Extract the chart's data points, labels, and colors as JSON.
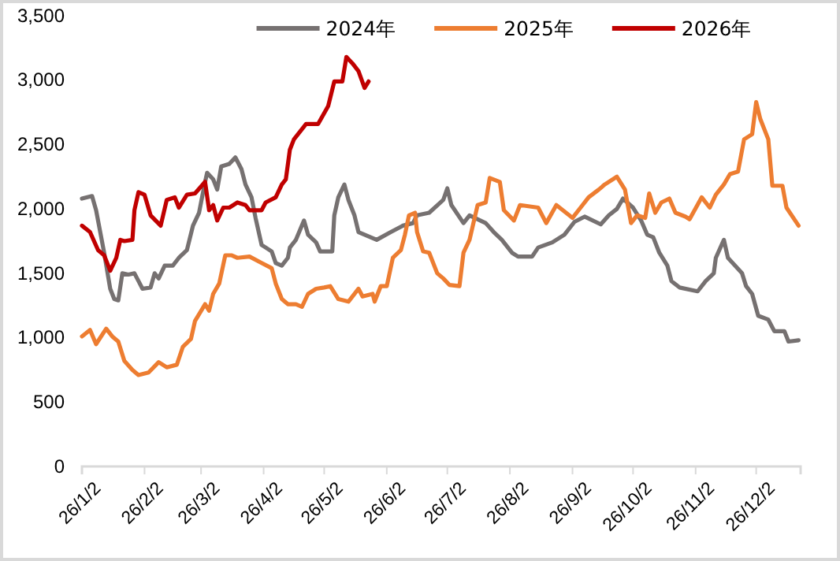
{
  "chart_data": {
    "type": "line",
    "legend": "top",
    "line_style": "solid",
    "marker": "none",
    "xlim": [
      "2026-01-02",
      "2026-12-24"
    ],
    "xticks": [
      {
        "value": "2026-01-02",
        "label": "26/1/2"
      },
      {
        "value": "2026-02-02",
        "label": "26/2/2"
      },
      {
        "value": "2026-03-02",
        "label": "26/3/2"
      },
      {
        "value": "2026-04-02",
        "label": "26/4/2"
      },
      {
        "value": "2026-05-02",
        "label": "26/5/2"
      },
      {
        "value": "2026-06-02",
        "label": "26/6/2"
      },
      {
        "value": "2026-07-02",
        "label": "26/7/2"
      },
      {
        "value": "2026-08-02",
        "label": "26/8/2"
      },
      {
        "value": "2026-09-02",
        "label": "26/9/2"
      },
      {
        "value": "2026-10-02",
        "label": "26/10/2"
      },
      {
        "value": "2026-11-02",
        "label": "26/11/2"
      },
      {
        "value": "2026-12-02",
        "label": "26/12/2"
      }
    ],
    "ylim": [
      0,
      3500
    ],
    "yticks": [
      {
        "value": 0,
        "label": "0"
      },
      {
        "value": 500,
        "label": "500"
      },
      {
        "value": 1000,
        "label": "1,000"
      },
      {
        "value": 1500,
        "label": "1,500"
      },
      {
        "value": 2000,
        "label": "2,000"
      },
      {
        "value": 2500,
        "label": "2,500"
      },
      {
        "value": 3000,
        "label": "3,000"
      },
      {
        "value": 3500,
        "label": "3,500"
      }
    ],
    "series": [
      {
        "name": "2024年",
        "color": "#767171",
        "x": [
          "2026-01-02",
          "2026-01-07",
          "2026-01-09",
          "2026-01-13",
          "2026-01-16",
          "2026-01-18",
          "2026-01-20",
          "2026-01-22",
          "2026-01-25",
          "2026-01-28",
          "2026-01-30",
          "2026-02-01",
          "2026-02-05",
          "2026-02-07",
          "2026-02-09",
          "2026-02-12",
          "2026-02-16",
          "2026-02-19",
          "2026-02-23",
          "2026-02-26",
          "2026-03-01",
          "2026-03-04",
          "2026-03-05",
          "2026-03-08",
          "2026-03-10",
          "2026-03-12",
          "2026-03-16",
          "2026-03-19",
          "2026-03-22",
          "2026-03-24",
          "2026-03-27",
          "2026-03-29",
          "2026-04-01",
          "2026-04-03",
          "2026-04-06",
          "2026-04-08",
          "2026-04-11",
          "2026-04-14",
          "2026-04-15",
          "2026-04-18",
          "2026-04-22",
          "2026-04-24",
          "2026-04-28",
          "2026-04-30",
          "2026-05-06",
          "2026-05-07",
          "2026-05-09",
          "2026-05-12",
          "2026-05-14",
          "2026-05-17",
          "2026-05-19",
          "2026-05-22",
          "2026-05-28",
          "2026-06-04",
          "2026-06-10",
          "2026-06-15",
          "2026-06-17",
          "2026-06-23",
          "2026-06-30",
          "2026-07-02",
          "2026-07-04",
          "2026-07-10",
          "2026-07-13",
          "2026-07-21",
          "2026-07-25",
          "2026-07-29",
          "2026-08-03",
          "2026-08-06",
          "2026-08-13",
          "2026-08-16",
          "2026-08-23",
          "2026-08-29",
          "2026-09-03",
          "2026-09-08",
          "2026-09-16",
          "2026-09-20",
          "2026-09-24",
          "2026-09-27",
          "2026-10-02",
          "2026-10-06",
          "2026-10-09",
          "2026-10-12",
          "2026-10-15",
          "2026-10-19",
          "2026-10-21",
          "2026-10-25",
          "2026-11-03",
          "2026-11-07",
          "2026-11-11",
          "2026-11-12",
          "2026-11-16",
          "2026-11-18",
          "2026-11-25",
          "2026-11-27",
          "2026-11-30",
          "2026-12-03",
          "2026-12-08",
          "2026-12-11",
          "2026-12-16",
          "2026-12-18",
          "2026-12-23"
        ],
        "values": [
          2080,
          2100,
          1990,
          1660,
          1380,
          1300,
          1290,
          1500,
          1490,
          1500,
          1440,
          1380,
          1390,
          1500,
          1460,
          1560,
          1560,
          1620,
          1680,
          1870,
          1970,
          2210,
          2280,
          2230,
          2150,
          2330,
          2350,
          2400,
          2310,
          2190,
          2090,
          1930,
          1720,
          1700,
          1670,
          1580,
          1560,
          1620,
          1700,
          1760,
          1910,
          1800,
          1740,
          1670,
          1670,
          1950,
          2090,
          2190,
          2070,
          1950,
          1820,
          1800,
          1760,
          1820,
          1870,
          1890,
          1950,
          1970,
          2070,
          2160,
          2030,
          1890,
          1950,
          1890,
          1820,
          1760,
          1660,
          1630,
          1630,
          1700,
          1740,
          1800,
          1900,
          1940,
          1880,
          1950,
          2000,
          2080,
          2010,
          1910,
          1800,
          1780,
          1660,
          1560,
          1440,
          1390,
          1360,
          1440,
          1500,
          1620,
          1760,
          1620,
          1500,
          1400,
          1340,
          1170,
          1140,
          1050,
          1050,
          970,
          980
        ]
      },
      {
        "name": "2025年",
        "color": "#ed7d31",
        "x": [
          "2026-01-02",
          "2026-01-06",
          "2026-01-09",
          "2026-01-14",
          "2026-01-17",
          "2026-01-20",
          "2026-01-23",
          "2026-01-27",
          "2026-01-30",
          "2026-02-04",
          "2026-02-09",
          "2026-02-13",
          "2026-02-18",
          "2026-02-21",
          "2026-02-25",
          "2026-02-27",
          "2026-03-04",
          "2026-03-06",
          "2026-03-08",
          "2026-03-11",
          "2026-03-14",
          "2026-03-17",
          "2026-03-20",
          "2026-03-26",
          "2026-04-01",
          "2026-04-06",
          "2026-04-08",
          "2026-04-11",
          "2026-04-14",
          "2026-04-18",
          "2026-04-21",
          "2026-04-24",
          "2026-04-28",
          "2026-05-02",
          "2026-05-05",
          "2026-05-09",
          "2026-05-14",
          "2026-05-19",
          "2026-05-21",
          "2026-05-26",
          "2026-05-27",
          "2026-05-30",
          "2026-06-02",
          "2026-06-05",
          "2026-06-09",
          "2026-06-11",
          "2026-06-13",
          "2026-06-16",
          "2026-06-17",
          "2026-06-20",
          "2026-06-23",
          "2026-06-27",
          "2026-06-30",
          "2026-07-03",
          "2026-07-08",
          "2026-07-10",
          "2026-07-13",
          "2026-07-17",
          "2026-07-21",
          "2026-07-23",
          "2026-07-28",
          "2026-07-30",
          "2026-08-04",
          "2026-08-07",
          "2026-08-16",
          "2026-08-20",
          "2026-08-25",
          "2026-09-02",
          "2026-09-06",
          "2026-09-10",
          "2026-09-15",
          "2026-09-18",
          "2026-09-24",
          "2026-09-28",
          "2026-10-01",
          "2026-10-04",
          "2026-10-08",
          "2026-10-10",
          "2026-10-13",
          "2026-10-16",
          "2026-10-20",
          "2026-10-23",
          "2026-10-28",
          "2026-10-30",
          "2026-11-05",
          "2026-11-09",
          "2026-11-12",
          "2026-11-16",
          "2026-11-19",
          "2026-11-23",
          "2026-11-26",
          "2026-11-30",
          "2026-12-02",
          "2026-12-04",
          "2026-12-08",
          "2026-12-10",
          "2026-12-15",
          "2026-12-17",
          "2026-12-23"
        ],
        "values": [
          1010,
          1060,
          950,
          1070,
          1010,
          970,
          820,
          750,
          710,
          730,
          810,
          770,
          790,
          930,
          990,
          1130,
          1260,
          1210,
          1340,
          1420,
          1640,
          1640,
          1620,
          1630,
          1580,
          1540,
          1420,
          1300,
          1260,
          1260,
          1240,
          1340,
          1380,
          1390,
          1400,
          1300,
          1280,
          1380,
          1320,
          1340,
          1280,
          1400,
          1400,
          1620,
          1680,
          1800,
          1950,
          1970,
          1820,
          1670,
          1660,
          1500,
          1460,
          1410,
          1400,
          1660,
          1760,
          2030,
          2050,
          2240,
          2210,
          1990,
          1910,
          2030,
          2010,
          1890,
          2030,
          1930,
          2010,
          2090,
          2150,
          2190,
          2250,
          2150,
          1890,
          1950,
          1930,
          2120,
          1970,
          2050,
          2080,
          1970,
          1940,
          1920,
          2090,
          2010,
          2110,
          2190,
          2270,
          2290,
          2540,
          2580,
          2830,
          2700,
          2540,
          2180,
          2180,
          2010,
          1870
        ]
      },
      {
        "name": "2026年",
        "color": "#c00000",
        "x": [
          "2026-01-02",
          "2026-01-06",
          "2026-01-10",
          "2026-01-13",
          "2026-01-16",
          "2026-01-19",
          "2026-01-21",
          "2026-01-23",
          "2026-01-27",
          "2026-01-28",
          "2026-01-30",
          "2026-02-02",
          "2026-02-05",
          "2026-02-10",
          "2026-02-13",
          "2026-02-17",
          "2026-02-19",
          "2026-02-23",
          "2026-02-27",
          "2026-03-04",
          "2026-03-06",
          "2026-03-08",
          "2026-03-10",
          "2026-03-13",
          "2026-03-16",
          "2026-03-20",
          "2026-03-24",
          "2026-03-26",
          "2026-04-01",
          "2026-04-03",
          "2026-04-08",
          "2026-04-11",
          "2026-04-13",
          "2026-04-15",
          "2026-04-17",
          "2026-04-23",
          "2026-04-29",
          "2026-05-04",
          "2026-05-07",
          "2026-05-11",
          "2026-05-13",
          "2026-05-16",
          "2026-05-19",
          "2026-05-22",
          "2026-05-24"
        ],
        "values": [
          1870,
          1820,
          1680,
          1640,
          1520,
          1620,
          1760,
          1750,
          1760,
          1990,
          2130,
          2110,
          1950,
          1870,
          2070,
          2090,
          2010,
          2110,
          2120,
          2210,
          1990,
          2030,
          1910,
          2010,
          2010,
          2050,
          2030,
          1990,
          1990,
          2050,
          2090,
          2190,
          2230,
          2460,
          2540,
          2660,
          2660,
          2800,
          2990,
          2990,
          3180,
          3130,
          3070,
          2940,
          2990
        ]
      }
    ]
  }
}
